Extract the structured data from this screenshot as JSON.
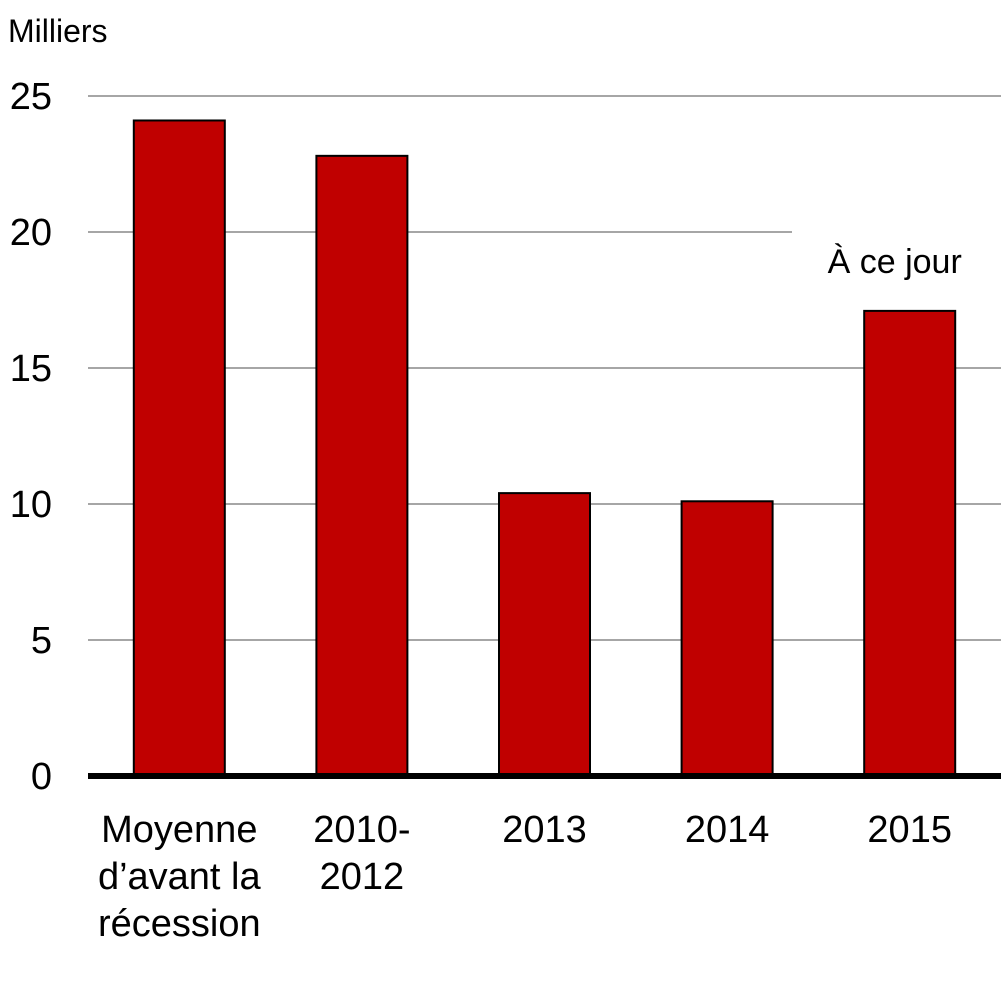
{
  "chart_data": {
    "type": "bar",
    "ylabel": "Milliers",
    "categories": [
      [
        "Moyenne",
        "d’avant la",
        "récession"
      ],
      [
        "2010-",
        "2012"
      ],
      [
        "2013"
      ],
      [
        "2014"
      ],
      [
        "2015"
      ]
    ],
    "values": [
      24.1,
      22.8,
      10.4,
      10.1,
      17.1
    ],
    "ylim": [
      0,
      25
    ],
    "yticks": [
      0,
      5,
      10,
      15,
      20,
      25
    ],
    "grid": true,
    "annotation": "À ce jour",
    "colors": {
      "bar": "#c00000",
      "grid": "#a6a6a6",
      "axis": "#000000"
    }
  }
}
